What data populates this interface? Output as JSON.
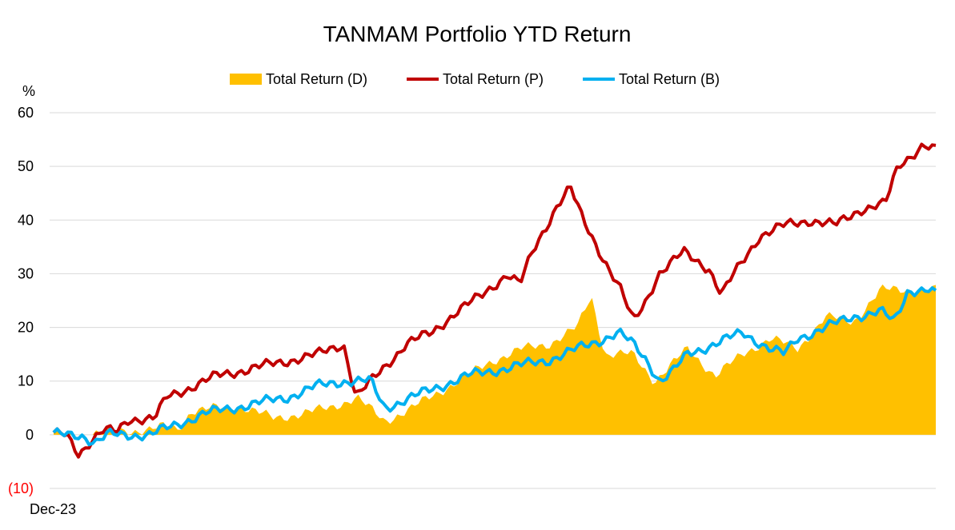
{
  "chart_data": {
    "type": "area+line",
    "title": "TANMAM Portfolio YTD Return",
    "yunit": "%",
    "ylim": [
      -10,
      60
    ],
    "yticks": [
      60,
      50,
      40,
      30,
      20,
      10,
      0,
      -10
    ],
    "ytick_labels": [
      "60",
      "50",
      "40",
      "30",
      "20",
      "10",
      "0",
      "(10)"
    ],
    "xtick_labels": [
      "Dec-23"
    ],
    "grid": true,
    "legend": "top",
    "points": 250,
    "series": [
      {
        "name": "Total Return (D)",
        "kind": "area",
        "color": "#ffc000",
        "keyframes": [
          [
            0,
            0
          ],
          [
            10,
            0
          ],
          [
            20,
            0.5
          ],
          [
            35,
            1
          ],
          [
            40,
            1.5
          ],
          [
            45,
            1
          ],
          [
            50,
            4.5
          ],
          [
            60,
            5
          ],
          [
            70,
            5
          ],
          [
            80,
            3
          ],
          [
            90,
            4
          ],
          [
            100,
            5
          ],
          [
            110,
            7
          ],
          [
            120,
            2.5
          ],
          [
            130,
            5
          ],
          [
            140,
            8
          ],
          [
            150,
            11
          ],
          [
            160,
            14
          ],
          [
            170,
            16
          ],
          [
            180,
            17
          ],
          [
            190,
            20
          ],
          [
            195,
            26
          ],
          [
            200,
            15
          ],
          [
            210,
            15
          ],
          [
            218,
            10
          ],
          [
            230,
            16
          ],
          [
            240,
            11
          ],
          [
            250,
            15
          ],
          [
            260,
            18
          ],
          [
            270,
            16
          ],
          [
            280,
            22
          ],
          [
            290,
            21
          ],
          [
            300,
            27
          ],
          [
            320,
            27
          ]
        ]
      },
      {
        "name": "Total Return (P)",
        "kind": "line",
        "color": "#c00000",
        "keyframes": [
          [
            0,
            0
          ],
          [
            5,
            0
          ],
          [
            10,
            -3.5
          ],
          [
            15,
            -1
          ],
          [
            20,
            0.8
          ],
          [
            25,
            0.5
          ],
          [
            30,
            3
          ],
          [
            40,
            3
          ],
          [
            45,
            7
          ],
          [
            55,
            9
          ],
          [
            65,
            11
          ],
          [
            75,
            12
          ],
          [
            85,
            13
          ],
          [
            95,
            14
          ],
          [
            105,
            15
          ],
          [
            115,
            17
          ],
          [
            120,
            7
          ],
          [
            130,
            12
          ],
          [
            140,
            17
          ],
          [
            150,
            19
          ],
          [
            160,
            23
          ],
          [
            170,
            26
          ],
          [
            180,
            30
          ],
          [
            185,
            28
          ],
          [
            190,
            34
          ],
          [
            200,
            43
          ],
          [
            205,
            46
          ],
          [
            210,
            40
          ],
          [
            218,
            33
          ],
          [
            225,
            27
          ],
          [
            230,
            21
          ],
          [
            235,
            25
          ],
          [
            240,
            30
          ],
          [
            250,
            34
          ],
          [
            260,
            31
          ],
          [
            265,
            26
          ],
          [
            270,
            30
          ],
          [
            280,
            37
          ],
          [
            290,
            39
          ],
          [
            300,
            40
          ],
          [
            310,
            39
          ],
          [
            320,
            42
          ],
          [
            330,
            43
          ],
          [
            335,
            50
          ],
          [
            345,
            54
          ],
          [
            350,
            53
          ]
        ]
      },
      {
        "name": "Total Return (B)",
        "kind": "line",
        "color": "#00b0f0",
        "keyframes": [
          [
            0,
            0
          ],
          [
            10,
            0
          ],
          [
            15,
            -1.5
          ],
          [
            20,
            0
          ],
          [
            35,
            0
          ],
          [
            45,
            2
          ],
          [
            55,
            4
          ],
          [
            65,
            5
          ],
          [
            75,
            6
          ],
          [
            85,
            7
          ],
          [
            95,
            9
          ],
          [
            105,
            10
          ],
          [
            115,
            10
          ],
          [
            120,
            5
          ],
          [
            130,
            7
          ],
          [
            140,
            9
          ],
          [
            150,
            11
          ],
          [
            160,
            12
          ],
          [
            170,
            13
          ],
          [
            180,
            14
          ],
          [
            190,
            16
          ],
          [
            200,
            18
          ],
          [
            205,
            19
          ],
          [
            210,
            17
          ],
          [
            215,
            14
          ],
          [
            220,
            10
          ],
          [
            225,
            12
          ],
          [
            230,
            15
          ],
          [
            240,
            17
          ],
          [
            250,
            19
          ],
          [
            260,
            16
          ],
          [
            265,
            15
          ],
          [
            270,
            18
          ],
          [
            280,
            20
          ],
          [
            290,
            22
          ],
          [
            300,
            23
          ],
          [
            305,
            21
          ],
          [
            310,
            27
          ],
          [
            318,
            27
          ],
          [
            320,
            26
          ]
        ]
      }
    ]
  }
}
